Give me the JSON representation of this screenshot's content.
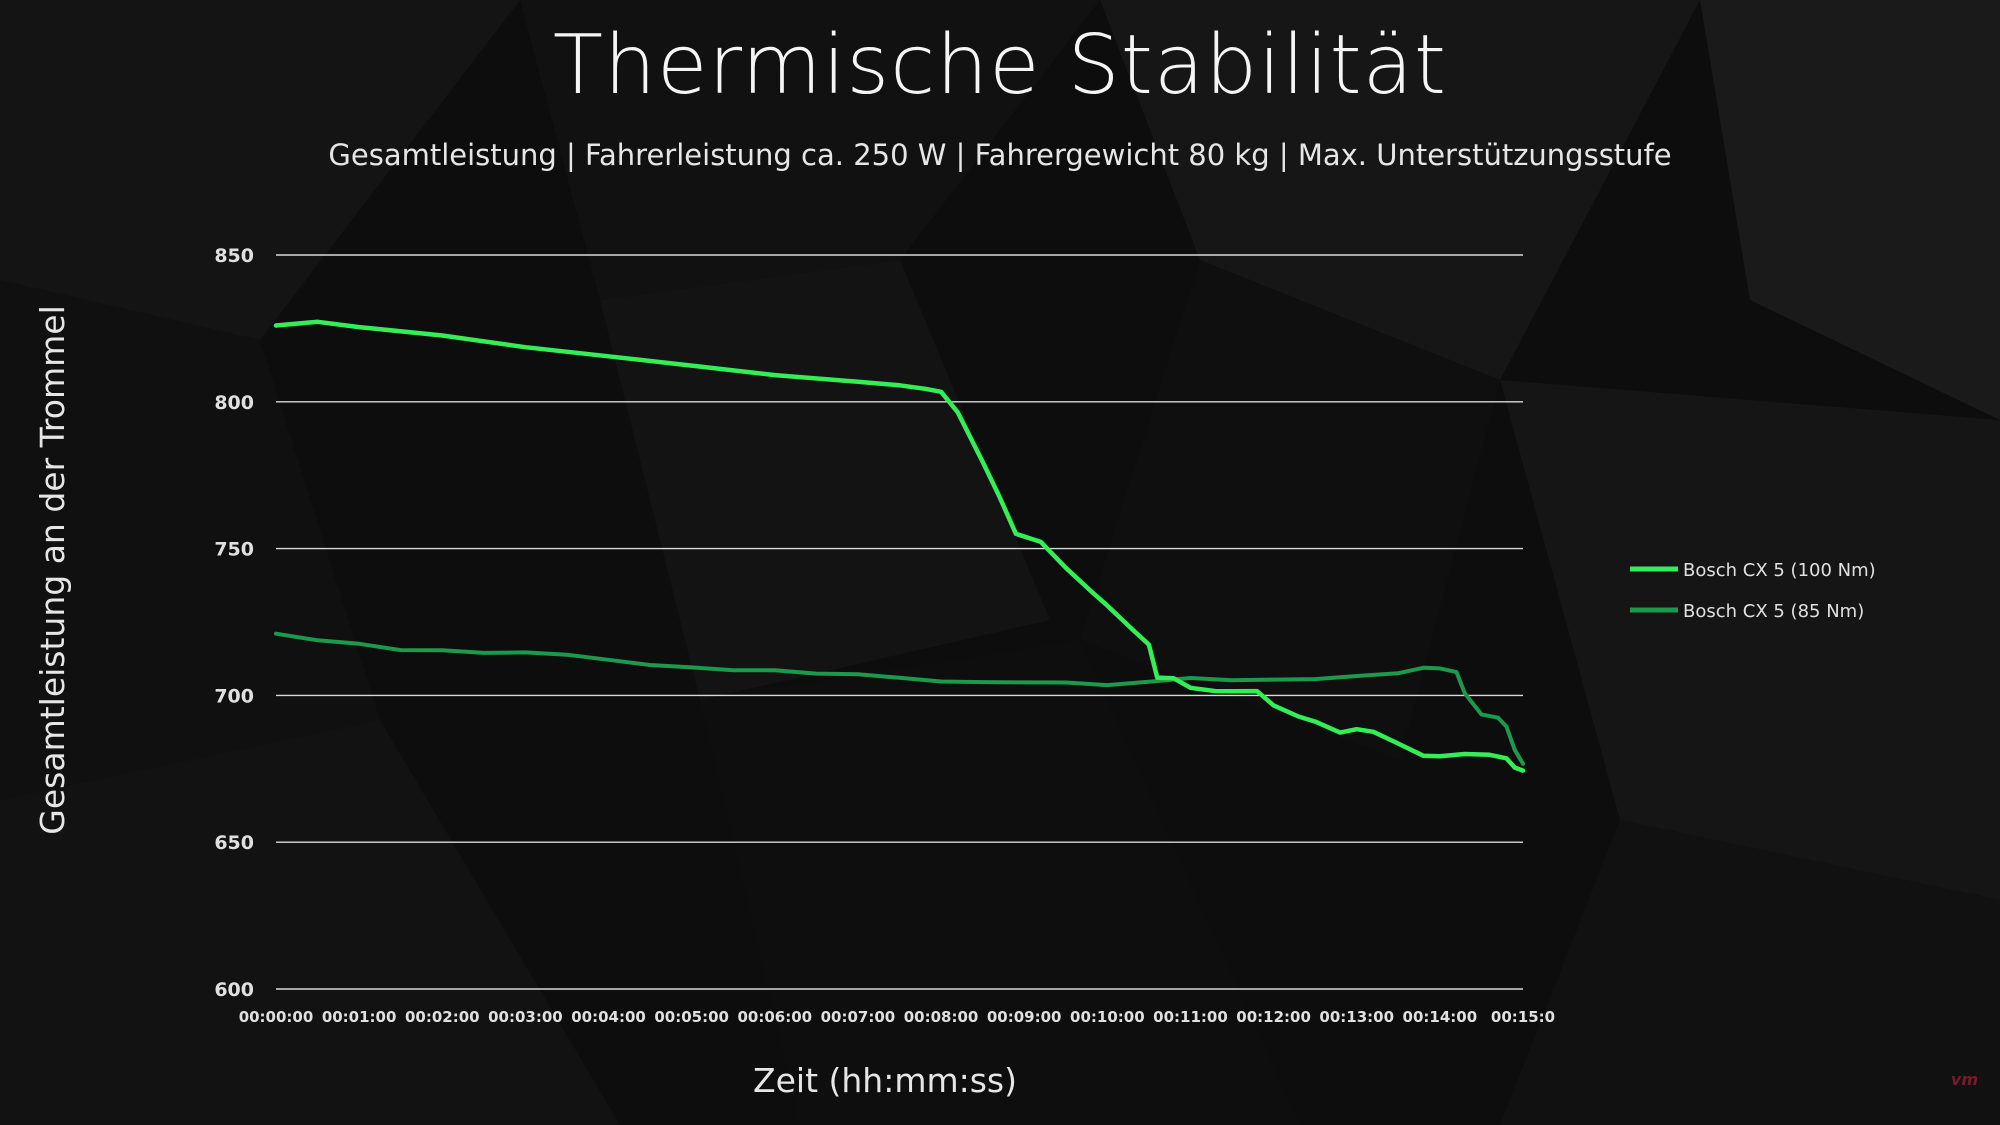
{
  "watermark": "vm",
  "colors": {
    "background": "#0d0d0d",
    "grid": "#d9d9d9",
    "series_100": "#33ee55",
    "series_85": "#1c9a4c"
  },
  "chart_data": {
    "type": "line",
    "title": "Thermische Stabilität",
    "subtitle": "Gesamtleistung | Fahrerleistung ca. 250 W | Fahrergewicht 80 kg  |  Max. Unterstützungsstufe",
    "xlabel": "Zeit (hh:mm:ss)",
    "ylabel": "Gesamtleistung an der Trommel",
    "ylim": [
      600,
      850
    ],
    "xlim_minutes": [
      0,
      15
    ],
    "yticks": [
      "850",
      "800",
      "750",
      "700",
      "650",
      "600"
    ],
    "xticks": [
      "00:00:00",
      "00:01:00",
      "00:02:00",
      "00:03:00",
      "00:04:00",
      "00:05:00",
      "00:06:00",
      "00:07:00",
      "00:08:00",
      "00:09:00",
      "00:10:00",
      "00:11:00",
      "00:12:00",
      "00:13:00",
      "00:14:00",
      "00:15:0"
    ],
    "grid": true,
    "legend_position": "right",
    "series": [
      {
        "name": "Bosch CX 5 (100 Nm)",
        "color": "#33ee55",
        "x": [
          0,
          0.5,
          1,
          2,
          3,
          4,
          5,
          6,
          7,
          7.5,
          7.8,
          8.0,
          8.2,
          8.5,
          8.7,
          8.9,
          9.2,
          9.5,
          9.8,
          10.0,
          10.3,
          10.5,
          10.6,
          10.8,
          11.0,
          11.3,
          11.5,
          11.8,
          12.0,
          12.3,
          12.5,
          12.8,
          13.0,
          13.2,
          13.5,
          13.8,
          14.0,
          14.3,
          14.6,
          14.8,
          14.9,
          15.0
        ],
        "y": [
          826,
          827,
          825,
          822,
          818,
          815,
          812,
          809,
          807,
          806,
          805,
          804,
          797,
          780,
          768,
          755,
          752,
          743,
          735,
          730,
          722,
          717,
          706,
          706,
          703,
          702,
          702,
          702,
          697,
          693,
          691,
          687,
          688,
          687,
          683,
          679,
          679,
          680,
          680,
          679,
          676,
          675
        ]
      },
      {
        "name": "Bosch CX 5 (85 Nm)",
        "color": "#1c9a4c",
        "x": [
          0,
          0.5,
          1,
          1.5,
          2,
          2.5,
          3,
          3.5,
          4,
          4.5,
          5,
          5.5,
          6,
          6.5,
          7,
          7.5,
          8,
          8.5,
          9,
          9.5,
          10,
          10.5,
          11,
          11.5,
          12,
          12.5,
          13,
          13.5,
          13.8,
          14.0,
          14.2,
          14.3,
          14.5,
          14.7,
          14.8,
          14.9,
          15.0
        ],
        "y": [
          721,
          719,
          718,
          716,
          716,
          715,
          715,
          714,
          712,
          710,
          709,
          708,
          708,
          707,
          707,
          706,
          705,
          705,
          705,
          705,
          704,
          705,
          706,
          705,
          705,
          705,
          706,
          707,
          709,
          709,
          708,
          701,
          694,
          693,
          690,
          682,
          677
        ]
      }
    ]
  }
}
